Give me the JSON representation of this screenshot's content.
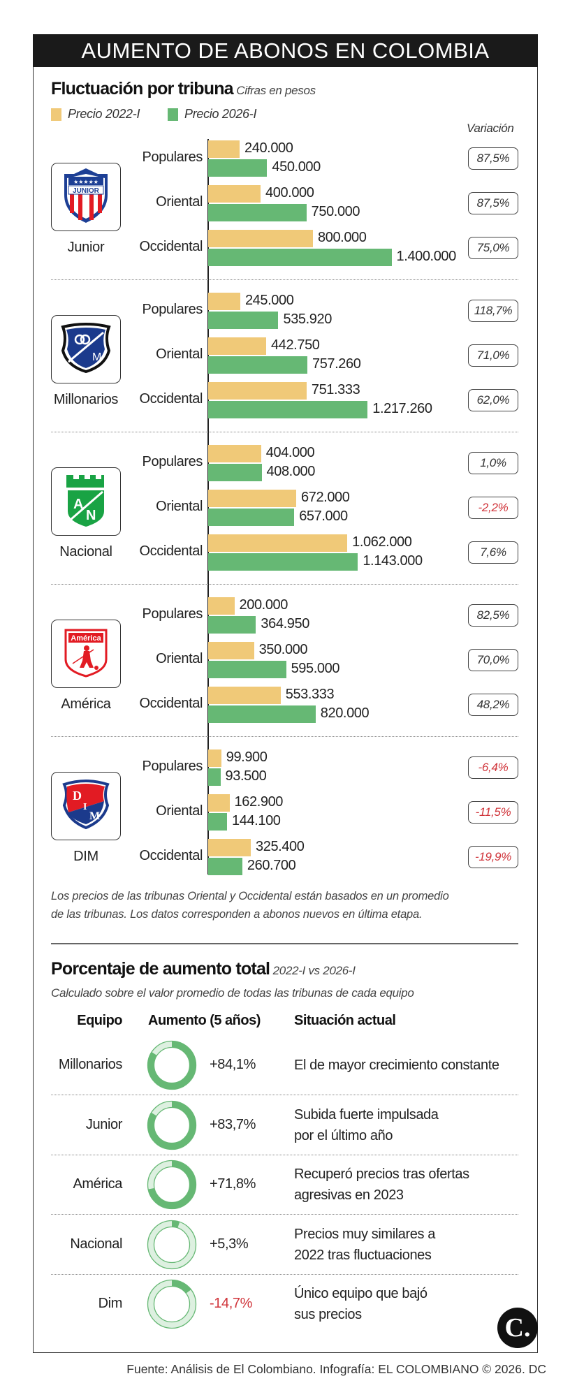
{
  "title": "AUMENTO DE ABONOS EN COLOMBIA",
  "colors": {
    "p2022": "#F0C978",
    "p2026": "#66B874",
    "negative": "#D0343A",
    "ring_light": "#DDF0E0"
  },
  "chart_data": {
    "type": "bar",
    "title": "Fluctuación por tribuna",
    "subtitle": "Cifras en pesos",
    "legend": [
      {
        "name": "Precio 2022-I",
        "color": "#F0C978"
      },
      {
        "name": "Precio 2026-I",
        "color": "#66B874"
      }
    ],
    "legend_placement": "top-left",
    "variation_header": "Variación",
    "orientation": "horizontal",
    "grid": false,
    "teams": [
      {
        "name": "Junior",
        "logo": "junior-shield-icon",
        "tribunas": [
          {
            "label": "Populares",
            "p2022": 240000,
            "p2022_label": "240.000",
            "p2026": 450000,
            "p2026_label": "450.000",
            "variation": "87,5%",
            "negative": false
          },
          {
            "label": "Oriental",
            "p2022": 400000,
            "p2022_label": "400.000",
            "p2026": 750000,
            "p2026_label": "750.000",
            "variation": "87,5%",
            "negative": false
          },
          {
            "label": "Occidental",
            "p2022": 800000,
            "p2022_label": "800.000",
            "p2026": 1400000,
            "p2026_label": "1.400.000",
            "variation": "75,0%",
            "negative": false
          }
        ]
      },
      {
        "name": "Millonarios",
        "logo": "millonarios-shield-icon",
        "tribunas": [
          {
            "label": "Populares",
            "p2022": 245000,
            "p2022_label": "245.000",
            "p2026": 535920,
            "p2026_label": "535.920",
            "variation": "118,7%",
            "negative": false
          },
          {
            "label": "Oriental",
            "p2022": 442750,
            "p2022_label": "442.750",
            "p2026": 757260,
            "p2026_label": "757.260",
            "variation": "71,0%",
            "negative": false
          },
          {
            "label": "Occidental",
            "p2022": 751333,
            "p2022_label": "751.333",
            "p2026": 1217260,
            "p2026_label": "1.217.260",
            "variation": "62,0%",
            "negative": false
          }
        ]
      },
      {
        "name": "Nacional",
        "logo": "nacional-shield-icon",
        "tribunas": [
          {
            "label": "Populares",
            "p2022": 404000,
            "p2022_label": "404.000",
            "p2026": 408000,
            "p2026_label": "408.000",
            "variation": "1,0%",
            "negative": false
          },
          {
            "label": "Oriental",
            "p2022": 672000,
            "p2022_label": "672.000",
            "p2026": 657000,
            "p2026_label": "657.000",
            "variation": "-2,2%",
            "negative": true
          },
          {
            "label": "Occidental",
            "p2022": 1062000,
            "p2022_label": "1.062.000",
            "p2026": 1143000,
            "p2026_label": "1.143.000",
            "variation": "7,6%",
            "negative": false
          }
        ]
      },
      {
        "name": "América",
        "logo": "america-shield-icon",
        "tribunas": [
          {
            "label": "Populares",
            "p2022": 200000,
            "p2022_label": "200.000",
            "p2026": 364950,
            "p2026_label": "364.950",
            "variation": "82,5%",
            "negative": false
          },
          {
            "label": "Oriental",
            "p2022": 350000,
            "p2022_label": "350.000",
            "p2026": 595000,
            "p2026_label": "595.000",
            "variation": "70,0%",
            "negative": false
          },
          {
            "label": "Occidental",
            "p2022": 553333,
            "p2022_label": "553.333",
            "p2026": 820000,
            "p2026_label": "820.000",
            "variation": "48,2%",
            "negative": false
          }
        ]
      },
      {
        "name": "DIM",
        "logo": "dim-shield-icon",
        "tribunas": [
          {
            "label": "Populares",
            "p2022": 99900,
            "p2022_label": "99.900",
            "p2026": 93500,
            "p2026_label": "93.500",
            "variation": "-6,4%",
            "negative": true
          },
          {
            "label": "Oriental",
            "p2022": 162900,
            "p2022_label": "162.900",
            "p2026": 144100,
            "p2026_label": "144.100",
            "variation": "-11,5%",
            "negative": true
          },
          {
            "label": "Occidental",
            "p2022": 325400,
            "p2022_label": "325.400",
            "p2026": 260700,
            "p2026_label": "260.700",
            "variation": "-19,9%",
            "negative": true
          }
        ]
      }
    ]
  },
  "note": [
    "Los precios de las tribunas Oriental y Occidental están basados en un promedio",
    "de las tribunas. Los datos corresponden a abonos nuevos en última etapa."
  ],
  "summary": {
    "title": "Porcentaje de aumento total",
    "title_suffix": "2022-I vs 2026-I",
    "subtitle": "Calculado sobre el valor promedio de todas las tribunas de cada equipo",
    "headers": {
      "team": "Equipo",
      "increase": "Aumento (5 años)",
      "situation": "Situación actual"
    },
    "rows": [
      {
        "team": "Millonarios",
        "pct": 84.1,
        "pct_label": "+84,1%",
        "negative": false,
        "situation": [
          "El de mayor crecimiento constante"
        ]
      },
      {
        "team": "Junior",
        "pct": 83.7,
        "pct_label": "+83,7%",
        "negative": false,
        "situation": [
          "Subida fuerte impulsada",
          "por el último año"
        ]
      },
      {
        "team": "América",
        "pct": 71.8,
        "pct_label": "+71,8%",
        "negative": false,
        "situation": [
          "Recuperó precios tras ofertas",
          "agresivas en 2023"
        ]
      },
      {
        "team": "Nacional",
        "pct": 5.3,
        "pct_label": "+5,3%",
        "negative": false,
        "situation": [
          "Precios muy similares a",
          "2022 tras fluctuaciones"
        ]
      },
      {
        "team": "Dim",
        "pct": -14.7,
        "pct_label": "-14,7%",
        "negative": true,
        "situation": [
          "Único equipo que bajó",
          "sus precios"
        ]
      }
    ]
  },
  "brand_logo": "C.",
  "footer": "Fuente: Análisis de El Colombiano. Infografía: EL COLOMBIANO © 2026. DC"
}
